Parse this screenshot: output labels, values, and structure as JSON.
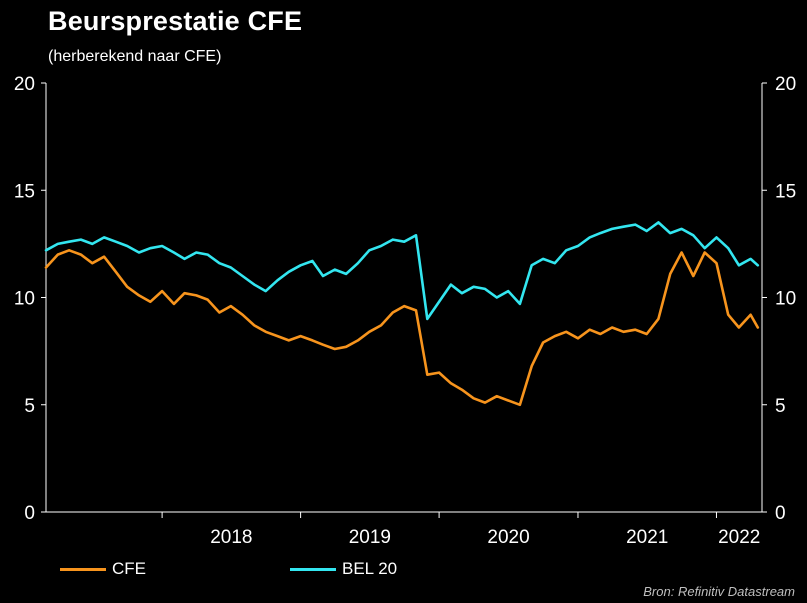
{
  "title": "Beursprestatie  CFE",
  "subtitle": "(herberekend naar CFE)",
  "source": "Bron: Refinitiv Datastream",
  "colors": {
    "CFE": "#f7941d",
    "BEL 20": "#33e6f0"
  },
  "chart_data": {
    "type": "line",
    "title": "Beursprestatie  CFE",
    "subtitle": "(herberekend naar CFE)",
    "xlabel": "",
    "ylabel": "",
    "ylim": [
      0,
      20
    ],
    "xlim": [
      "2017-03-01",
      "2022-05-01"
    ],
    "y_ticks": [
      0,
      5,
      10,
      15,
      20
    ],
    "x_tick_labels": [
      "2018",
      "2019",
      "2020",
      "2021",
      "2022"
    ],
    "grid": false,
    "legend_position": "bottom",
    "series": [
      {
        "name": "CFE",
        "color": "#f7941d",
        "points": [
          [
            "2017-03-01",
            11.4
          ],
          [
            "2017-04-01",
            12.0
          ],
          [
            "2017-05-01",
            12.2
          ],
          [
            "2017-06-01",
            12.0
          ],
          [
            "2017-07-01",
            11.6
          ],
          [
            "2017-08-01",
            11.9
          ],
          [
            "2017-09-01",
            11.2
          ],
          [
            "2017-10-01",
            10.5
          ],
          [
            "2017-11-01",
            10.1
          ],
          [
            "2017-12-01",
            9.8
          ],
          [
            "2018-01-01",
            10.3
          ],
          [
            "2018-02-01",
            9.7
          ],
          [
            "2018-03-01",
            10.2
          ],
          [
            "2018-04-01",
            10.1
          ],
          [
            "2018-05-01",
            9.9
          ],
          [
            "2018-06-01",
            9.3
          ],
          [
            "2018-07-01",
            9.6
          ],
          [
            "2018-08-01",
            9.2
          ],
          [
            "2018-09-01",
            8.7
          ],
          [
            "2018-10-01",
            8.4
          ],
          [
            "2018-11-01",
            8.2
          ],
          [
            "2018-12-01",
            8.0
          ],
          [
            "2019-01-01",
            8.2
          ],
          [
            "2019-02-01",
            8.0
          ],
          [
            "2019-03-01",
            7.8
          ],
          [
            "2019-04-01",
            7.6
          ],
          [
            "2019-05-01",
            7.7
          ],
          [
            "2019-06-01",
            8.0
          ],
          [
            "2019-07-01",
            8.4
          ],
          [
            "2019-08-01",
            8.7
          ],
          [
            "2019-09-01",
            9.3
          ],
          [
            "2019-10-01",
            9.6
          ],
          [
            "2019-11-01",
            9.4
          ],
          [
            "2019-12-01",
            6.4
          ],
          [
            "2020-01-01",
            6.5
          ],
          [
            "2020-02-01",
            6.0
          ],
          [
            "2020-03-01",
            5.7
          ],
          [
            "2020-04-01",
            5.3
          ],
          [
            "2020-05-01",
            5.1
          ],
          [
            "2020-06-01",
            5.4
          ],
          [
            "2020-07-01",
            5.2
          ],
          [
            "2020-08-01",
            5.0
          ],
          [
            "2020-09-01",
            6.8
          ],
          [
            "2020-10-01",
            7.9
          ],
          [
            "2020-11-01",
            8.2
          ],
          [
            "2020-12-01",
            8.4
          ],
          [
            "2021-01-01",
            8.1
          ],
          [
            "2021-02-01",
            8.5
          ],
          [
            "2021-03-01",
            8.3
          ],
          [
            "2021-04-01",
            8.6
          ],
          [
            "2021-05-01",
            8.4
          ],
          [
            "2021-06-01",
            8.5
          ],
          [
            "2021-07-01",
            8.3
          ],
          [
            "2021-08-01",
            9.0
          ],
          [
            "2021-09-01",
            11.1
          ],
          [
            "2021-10-01",
            12.1
          ],
          [
            "2021-11-01",
            11.0
          ],
          [
            "2021-12-01",
            12.1
          ],
          [
            "2022-01-01",
            11.6
          ],
          [
            "2022-02-01",
            9.2
          ],
          [
            "2022-03-01",
            8.6
          ],
          [
            "2022-04-01",
            9.2
          ],
          [
            "2022-04-20",
            8.6
          ]
        ]
      },
      {
        "name": "BEL 20",
        "color": "#33e6f0",
        "points": [
          [
            "2017-03-01",
            12.2
          ],
          [
            "2017-04-01",
            12.5
          ],
          [
            "2017-05-01",
            12.6
          ],
          [
            "2017-06-01",
            12.7
          ],
          [
            "2017-07-01",
            12.5
          ],
          [
            "2017-08-01",
            12.8
          ],
          [
            "2017-09-01",
            12.6
          ],
          [
            "2017-10-01",
            12.4
          ],
          [
            "2017-11-01",
            12.1
          ],
          [
            "2017-12-01",
            12.3
          ],
          [
            "2018-01-01",
            12.4
          ],
          [
            "2018-02-01",
            12.1
          ],
          [
            "2018-03-01",
            11.8
          ],
          [
            "2018-04-01",
            12.1
          ],
          [
            "2018-05-01",
            12.0
          ],
          [
            "2018-06-01",
            11.6
          ],
          [
            "2018-07-01",
            11.4
          ],
          [
            "2018-08-01",
            11.0
          ],
          [
            "2018-09-01",
            10.6
          ],
          [
            "2018-10-01",
            10.3
          ],
          [
            "2018-11-01",
            10.8
          ],
          [
            "2018-12-01",
            11.2
          ],
          [
            "2019-01-01",
            11.5
          ],
          [
            "2019-02-01",
            11.7
          ],
          [
            "2019-03-01",
            11.0
          ],
          [
            "2019-04-01",
            11.3
          ],
          [
            "2019-05-01",
            11.1
          ],
          [
            "2019-06-01",
            11.6
          ],
          [
            "2019-07-01",
            12.2
          ],
          [
            "2019-08-01",
            12.4
          ],
          [
            "2019-09-01",
            12.7
          ],
          [
            "2019-10-01",
            12.6
          ],
          [
            "2019-11-01",
            12.9
          ],
          [
            "2019-12-01",
            9.0
          ],
          [
            "2020-01-01",
            9.8
          ],
          [
            "2020-02-01",
            10.6
          ],
          [
            "2020-03-01",
            10.2
          ],
          [
            "2020-04-01",
            10.5
          ],
          [
            "2020-05-01",
            10.4
          ],
          [
            "2020-06-01",
            10.0
          ],
          [
            "2020-07-01",
            10.3
          ],
          [
            "2020-08-01",
            9.7
          ],
          [
            "2020-09-01",
            11.5
          ],
          [
            "2020-10-01",
            11.8
          ],
          [
            "2020-11-01",
            11.6
          ],
          [
            "2020-12-01",
            12.2
          ],
          [
            "2021-01-01",
            12.4
          ],
          [
            "2021-02-01",
            12.8
          ],
          [
            "2021-03-01",
            13.0
          ],
          [
            "2021-04-01",
            13.2
          ],
          [
            "2021-05-01",
            13.3
          ],
          [
            "2021-06-01",
            13.4
          ],
          [
            "2021-07-01",
            13.1
          ],
          [
            "2021-08-01",
            13.5
          ],
          [
            "2021-09-01",
            13.0
          ],
          [
            "2021-10-01",
            13.2
          ],
          [
            "2021-11-01",
            12.9
          ],
          [
            "2021-12-01",
            12.3
          ],
          [
            "2022-01-01",
            12.8
          ],
          [
            "2022-02-01",
            12.3
          ],
          [
            "2022-03-01",
            11.5
          ],
          [
            "2022-04-01",
            11.8
          ],
          [
            "2022-04-20",
            11.5
          ]
        ]
      }
    ]
  }
}
